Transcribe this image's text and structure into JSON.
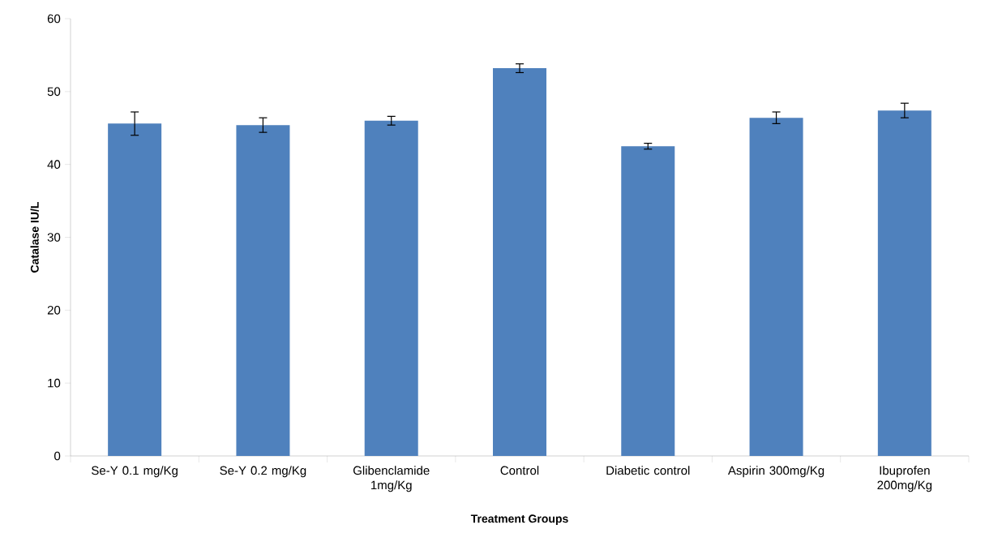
{
  "chart_data": {
    "type": "bar",
    "xlabel": "Treatment Groups",
    "ylabel": "Catalase IU/L",
    "categories": [
      "Se-Y 0.1 mg/Kg",
      "Se-Y 0.2 mg/Kg",
      "Glibenclamide 1mg/Kg",
      "Control",
      "Diabetic control",
      "Aspirin 300mg/Kg",
      "Ibuprofen 200mg/Kg"
    ],
    "values": [
      45.6,
      45.4,
      46.0,
      53.2,
      42.5,
      46.4,
      47.4
    ],
    "errors": [
      1.6,
      1.0,
      0.6,
      0.6,
      0.4,
      0.8,
      1.0
    ],
    "color": "#4f81bd",
    "ylim": [
      0,
      60
    ],
    "yticks": [
      0,
      10,
      20,
      30,
      40,
      50,
      60
    ]
  }
}
